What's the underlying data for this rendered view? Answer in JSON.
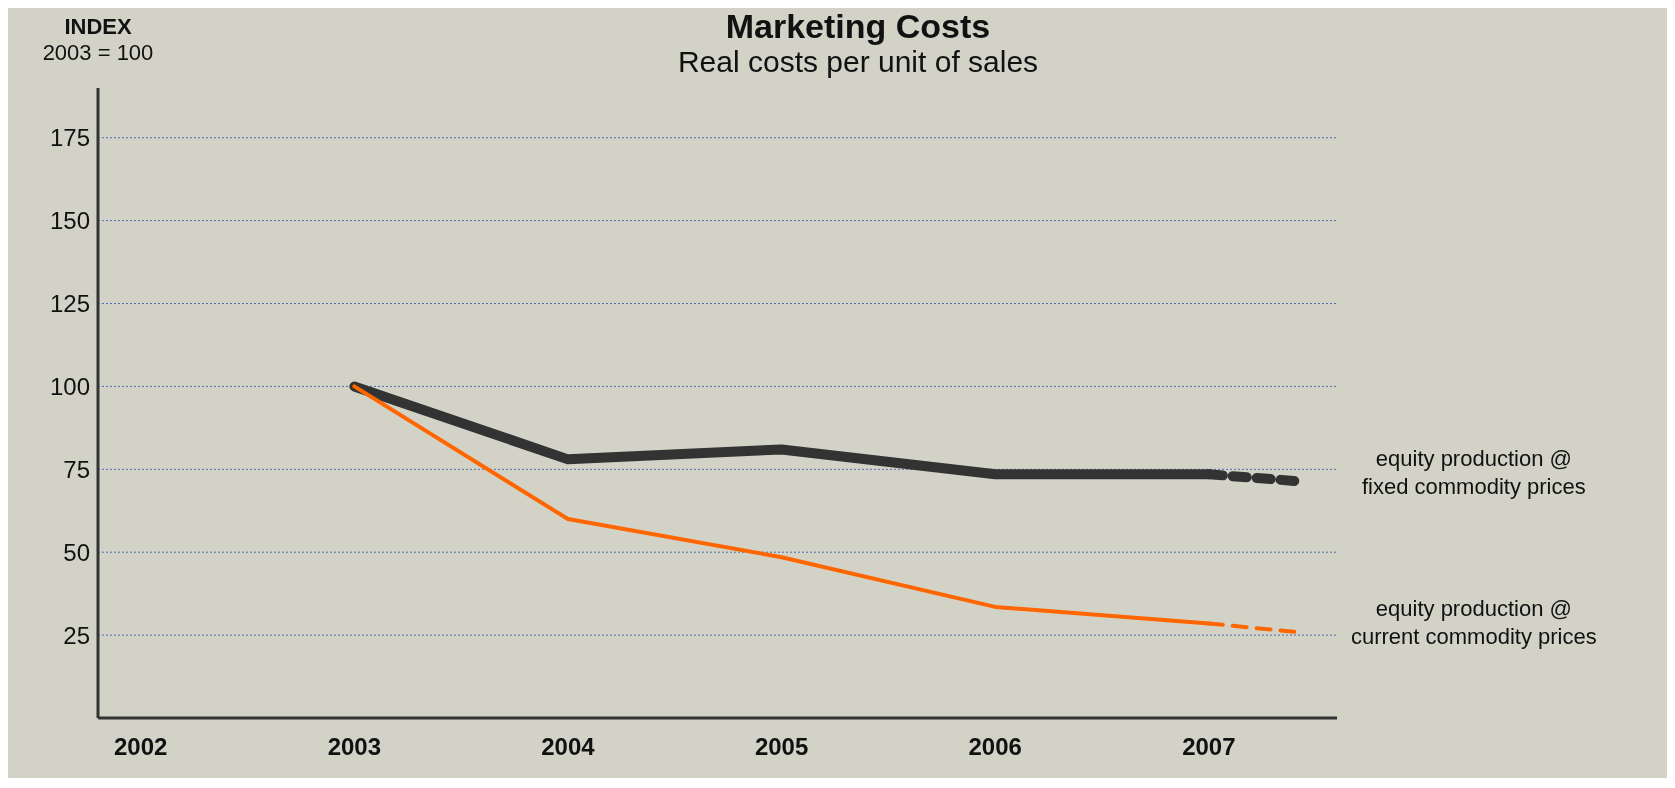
{
  "chart_data": {
    "type": "line",
    "title": "Marketing Costs",
    "subtitle": "Real costs per unit of sales",
    "ylabel": "INDEX",
    "annotations": [
      "2003 = 100"
    ],
    "xlim": [
      2001.8,
      2007.6
    ],
    "xticks": [
      2002,
      2003,
      2004,
      2005,
      2006,
      2007
    ],
    "ylim": [
      0,
      190
    ],
    "yticks": [
      25,
      50,
      75,
      100,
      125,
      150,
      175
    ],
    "grid": "y",
    "marker": "none",
    "series": [
      {
        "name": "equity production @\nfixed commodity prices",
        "color": "#333333",
        "x": [
          2003,
          2004,
          2005,
          2006,
          2007
        ],
        "values": [
          100,
          78,
          81,
          73.5,
          73.5
        ],
        "line_style": "solid"
      },
      {
        "name": "equity production @\ncurrent commodity prices",
        "color": "#ff6600",
        "x": [
          2003,
          2004,
          2005,
          2006,
          2007
        ],
        "values": [
          100,
          60,
          48.5,
          33.5,
          28.5
        ],
        "line_style": "solid"
      },
      {
        "color": "#333333",
        "x": [
          2007,
          2007.4
        ],
        "values": [
          73.5,
          71.5
        ],
        "line_style": "dashed"
      },
      {
        "color": "#ff6600",
        "x": [
          2007,
          2007.4
        ],
        "values": [
          28.5,
          26
        ],
        "line_style": "dashed"
      }
    ]
  }
}
